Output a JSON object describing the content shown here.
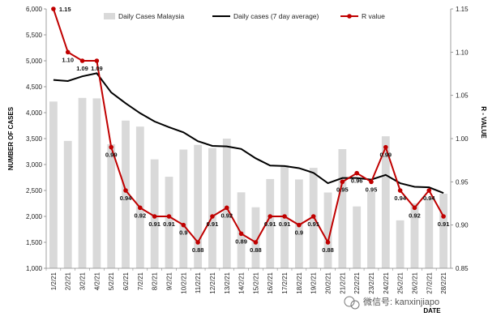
{
  "chart_data": {
    "type": "bar",
    "categories": [
      "1/2/21",
      "2/2/21",
      "3/2/21",
      "4/2/21",
      "5/2/21",
      "6/2/21",
      "7/2/21",
      "8/2/21",
      "9/2/21",
      "10/2/21",
      "11/2/21",
      "12/2/21",
      "13/2/21",
      "14/2/21",
      "15/2/21",
      "16/2/21",
      "17/2/21",
      "18/2/21",
      "19/2/21",
      "20/2/21",
      "21/2/21",
      "22/2/21",
      "23/2/21",
      "24/2/21",
      "25/2/21",
      "26/2/21",
      "27/2/21",
      "28/2/21"
    ],
    "series": [
      {
        "name": "Daily Cases Malaysia",
        "kind": "bar",
        "axis": "left",
        "color": "#d9d9d9",
        "values": [
          4214,
          3455,
          4284,
          4275,
          3391,
          3847,
          3731,
          3100,
          2764,
          3288,
          3379,
          3317,
          3499,
          2464,
          2176,
          2720,
          2989,
          2712,
          2936,
          2461,
          3297,
          2192,
          2468,
          3545,
          1924,
          2253,
          2364,
          2437
        ]
      },
      {
        "name": "Daily cases (7 day average)",
        "kind": "line",
        "axis": "left",
        "color": "#000000",
        "values": [
          4630,
          4610,
          4700,
          4760,
          4390,
          4180,
          3990,
          3830,
          3720,
          3620,
          3450,
          3360,
          3350,
          3300,
          3120,
          2980,
          2970,
          2930,
          2840,
          2640,
          2740,
          2740,
          2710,
          2800,
          2640,
          2570,
          2560,
          2450
        ]
      },
      {
        "name": "R value",
        "kind": "line-markers",
        "axis": "right",
        "color": "#c00000",
        "values": [
          1.15,
          1.1,
          1.09,
          1.09,
          0.99,
          0.94,
          0.92,
          0.91,
          0.91,
          0.9,
          0.88,
          0.91,
          0.92,
          0.89,
          0.88,
          0.91,
          0.91,
          0.9,
          0.91,
          0.88,
          0.95,
          0.96,
          0.95,
          0.99,
          0.94,
          0.92,
          0.94,
          0.91
        ]
      }
    ],
    "data_labels": [
      "1.15",
      "1.10",
      "1.09",
      "1.09",
      "0.99",
      "0.94",
      "0.92",
      "0.91",
      "0.91",
      "0.9",
      "0.88",
      "0.91",
      "0.92",
      "0.89",
      "0.88",
      "0.91",
      "0.91",
      "0.9",
      "0.91",
      "0.88",
      "0.95",
      "0.96",
      "0.95",
      "0.99",
      "0.94",
      "0.92",
      "0.94",
      "0.91"
    ],
    "ylabel": "NUMBER OF CASES",
    "y2label": "R - VALUE",
    "xlabel": "DATE",
    "ylim": [
      1000,
      6000
    ],
    "y_ticks": [
      1000,
      1500,
      2000,
      2500,
      3000,
      3500,
      4000,
      4500,
      5000,
      5500,
      6000
    ],
    "y_tick_labels": [
      "1,000",
      "1,500",
      "2,000",
      "2,500",
      "3,000",
      "3,500",
      "4,000",
      "4,500",
      "5,000",
      "5,500",
      "6,000"
    ],
    "y2lim": [
      0.85,
      1.15
    ],
    "y2_ticks": [
      0.85,
      0.9,
      0.95,
      1.0,
      1.05,
      1.1,
      1.15
    ],
    "y2_tick_labels": [
      "0.85",
      "0.90",
      "0.95",
      "1.00",
      "1.05",
      "1.10",
      "1.15"
    ],
    "grid": false,
    "legend_position": "top"
  },
  "watermark": "微信号: kanxinjiapo"
}
